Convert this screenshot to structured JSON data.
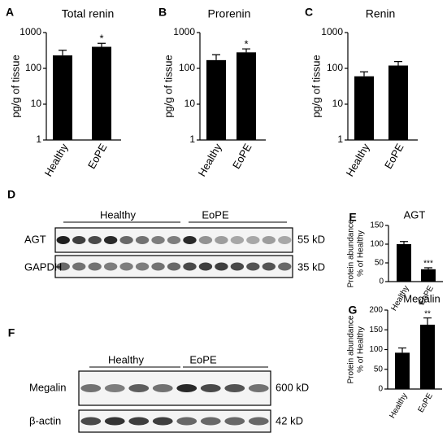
{
  "chart_data": [
    {
      "type": "bar",
      "panel": "A",
      "title": "Total renin",
      "ylabel": [
        "pg/g of tissue"
      ],
      "categories": [
        "Healthy",
        "EoPE"
      ],
      "values": [
        230,
        400
      ],
      "errors": [
        90,
        100
      ],
      "significance": [
        null,
        "*"
      ],
      "color": "#000000",
      "log_scale": true,
      "ylim": [
        1,
        1000
      ],
      "yticks": [
        1,
        10,
        100,
        1000
      ]
    },
    {
      "type": "bar",
      "panel": "B",
      "title": "Prorenin",
      "ylabel": [
        "pg/g of tissue"
      ],
      "categories": [
        "Healthy",
        "EoPE"
      ],
      "values": [
        170,
        280
      ],
      "errors": [
        70,
        70
      ],
      "significance": [
        null,
        "*"
      ],
      "color": "#000000",
      "log_scale": true,
      "ylim": [
        1,
        1000
      ],
      "yticks": [
        1,
        10,
        100,
        1000
      ]
    },
    {
      "type": "bar",
      "panel": "C",
      "title": "Renin",
      "ylabel": [
        "pg/g of tissue"
      ],
      "categories": [
        "Healthy",
        "EoPE"
      ],
      "values": [
        60,
        120
      ],
      "errors": [
        20,
        35
      ],
      "significance": [
        null,
        null
      ],
      "color": "#000000",
      "log_scale": true,
      "ylim": [
        1,
        1000
      ],
      "yticks": [
        1,
        10,
        100,
        1000
      ]
    },
    {
      "type": "bar",
      "panel": "E",
      "title": "AGT",
      "ylabel": [
        "Protein abundance",
        "% of Healthy"
      ],
      "categories": [
        "Healthy",
        "EoPE"
      ],
      "values": [
        100,
        33
      ],
      "errors": [
        7,
        4
      ],
      "significance": [
        null,
        "***"
      ],
      "color": "#000000",
      "log_scale": false,
      "ylim": [
        0,
        150
      ],
      "yticks": [
        0,
        50,
        100,
        150
      ]
    },
    {
      "type": "bar",
      "panel": "G",
      "title": "Megalin",
      "ylabel": [
        "Protein abundance",
        "% of Healthy"
      ],
      "categories": [
        "Healthy",
        "EoPE"
      ],
      "values": [
        92,
        163
      ],
      "errors": [
        12,
        17
      ],
      "significance": [
        null,
        "**"
      ],
      "color": "#000000",
      "log_scale": false,
      "ylim": [
        0,
        200
      ],
      "yticks": [
        0,
        50,
        100,
        150,
        200
      ]
    }
  ],
  "blots": [
    {
      "panel": "D",
      "groups": [
        "Healthy",
        "EoPE"
      ],
      "rows": [
        {
          "label": "AGT",
          "size": "55 kD"
        },
        {
          "label": "GAPDH",
          "size": "35 kD"
        }
      ]
    },
    {
      "panel": "F",
      "groups": [
        "Healthy",
        "EoPE"
      ],
      "rows": [
        {
          "label": "Megalin",
          "size": "600 kD"
        },
        {
          "label": "β-actin",
          "size": "42 kD"
        }
      ]
    }
  ]
}
